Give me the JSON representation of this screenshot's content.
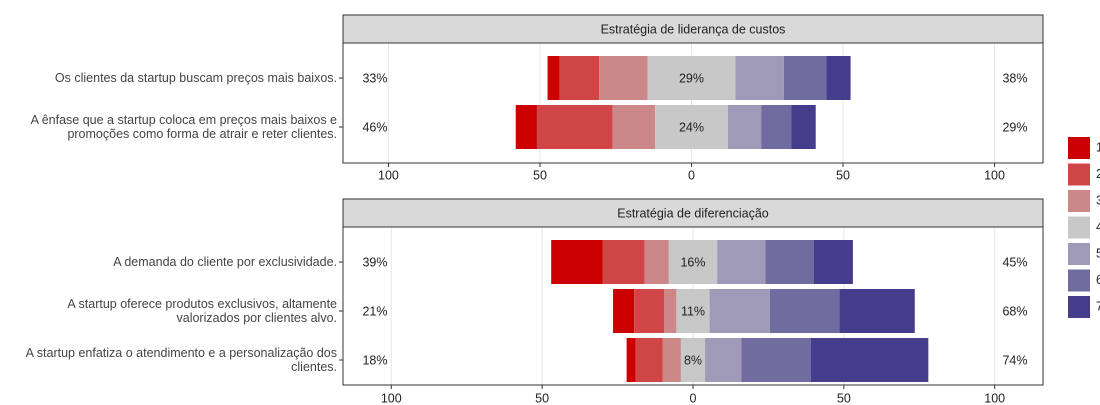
{
  "chart_data": [
    {
      "type": "diverging-bar",
      "title": "Estratégia de liderança de custos",
      "categories": [
        "Os clientes da startup buscam preços mais baixos.",
        "A ênfase que a startup coloca em preços mais baixos e promoções como forma de atrair e reter clientes."
      ],
      "series": [
        {
          "name": "1",
          "color": "#cc0000",
          "values": [
            4,
            7
          ]
        },
        {
          "name": "2",
          "color": "#d04545",
          "values": [
            13,
            25
          ]
        },
        {
          "name": "3",
          "color": "#cc8888",
          "values": [
            16,
            14
          ]
        },
        {
          "name": "4",
          "color": "#c8c8c8",
          "values": [
            29,
            24
          ],
          "value_labels": [
            "29%",
            "24%"
          ]
        },
        {
          "name": "5",
          "color": "#9f9ab8",
          "values": [
            16,
            11
          ]
        },
        {
          "name": "6",
          "color": "#716ca0",
          "values": [
            14,
            10
          ]
        },
        {
          "name": "7",
          "color": "#463c8c",
          "values": [
            8,
            8
          ]
        }
      ],
      "left_totals": [
        33,
        46
      ],
      "left_total_labels": [
        "33%",
        "46%"
      ],
      "right_totals": [
        38,
        29
      ],
      "right_total_labels": [
        "38%",
        "29%"
      ],
      "xlim": [
        -115,
        116
      ],
      "xticks": [
        {
          "value": -100,
          "label": "100"
        },
        {
          "value": -50,
          "label": "50"
        },
        0,
        50,
        100
      ],
      "grid": true
    },
    {
      "type": "diverging-bar",
      "title": "Estratégia de diferenciação",
      "categories": [
        "A demanda do cliente por exclusividade.",
        "A startup oferece produtos exclusivos, altamente valorizados por clientes alvo.",
        "A startup enfatiza o atendimento e a personalização dos clientes."
      ],
      "series": [
        {
          "name": "1",
          "color": "#cc0000",
          "values": [
            17,
            7,
            3
          ]
        },
        {
          "name": "2",
          "color": "#d04545",
          "values": [
            14,
            10,
            9
          ]
        },
        {
          "name": "3",
          "color": "#cc8888",
          "values": [
            8,
            4,
            6
          ]
        },
        {
          "name": "4",
          "color": "#c8c8c8",
          "values": [
            16,
            11,
            8
          ],
          "value_labels": [
            "16%",
            "11%",
            "8%"
          ]
        },
        {
          "name": "5",
          "color": "#9f9ab8",
          "values": [
            16,
            20,
            12
          ]
        },
        {
          "name": "6",
          "color": "#716ca0",
          "values": [
            16,
            23,
            23
          ]
        },
        {
          "name": "7",
          "color": "#463c8c",
          "values": [
            13,
            25,
            39
          ]
        }
      ],
      "left_totals": [
        39,
        21,
        18
      ],
      "left_total_labels": [
        "39%",
        "21%",
        "18%"
      ],
      "right_totals": [
        45,
        68,
        74
      ],
      "right_total_labels": [
        "45%",
        "68%",
        "74%"
      ],
      "xlim": [
        -116,
        116
      ],
      "xticks": [
        {
          "value": -100,
          "label": "100"
        },
        {
          "value": -50,
          "label": "50"
        },
        0,
        50,
        100
      ],
      "grid": true
    }
  ]
}
